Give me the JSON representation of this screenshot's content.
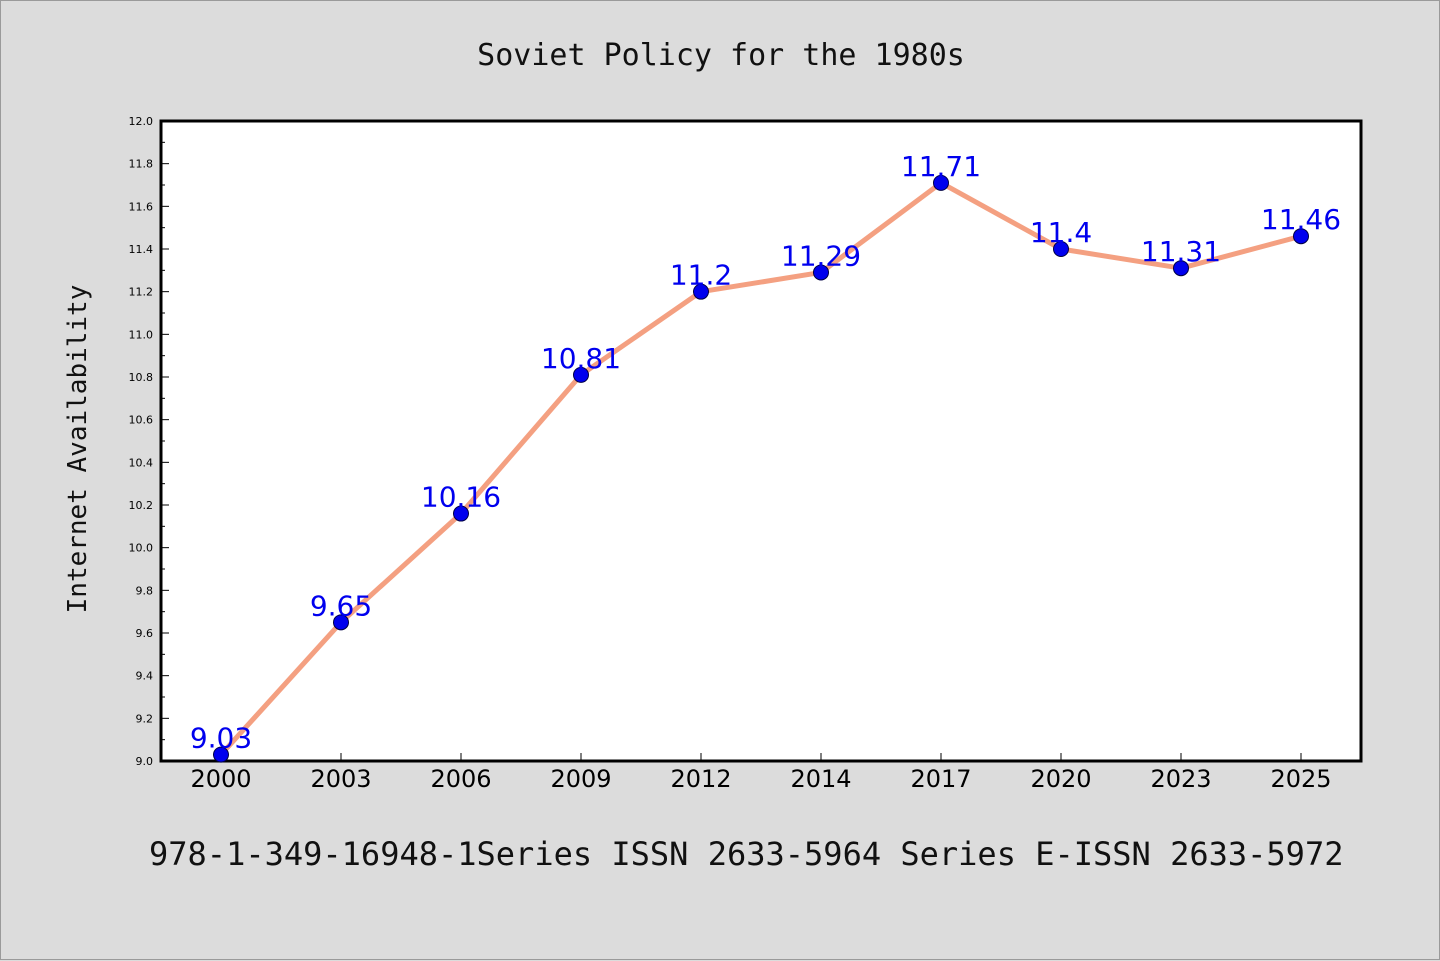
{
  "colors": {
    "background": "#dcdcdc",
    "plot_background": "#ffffff",
    "line": "#f4a081",
    "marker": "#0000ee",
    "data_label": "#0000ee"
  },
  "footer": {
    "text": "978-1-349-16948-1Series ISSN 2633-5964 Series E-ISSN 2633-5972"
  },
  "chart_data": {
    "type": "line",
    "title": "Soviet Policy for the 1980s",
    "xlabel": "",
    "ylabel": "Internet Availability",
    "categories": [
      "2000",
      "2003",
      "2006",
      "2009",
      "2012",
      "2014",
      "2017",
      "2020",
      "2023",
      "2025"
    ],
    "series": [
      {
        "values": [
          9.03,
          9.65,
          10.16,
          10.81,
          11.2,
          11.29,
          11.71,
          11.4,
          11.31,
          11.46
        ],
        "labels": [
          "9.03",
          "9.65",
          "10.16",
          "10.81",
          "11.2",
          "11.29",
          "11.71",
          "11.4",
          "11.31",
          "11.46"
        ]
      }
    ],
    "ylim": [
      9.0,
      12.0
    ],
    "yticks": [
      "9.0",
      "9.2",
      "9.4",
      "9.6",
      "9.8",
      "10.0",
      "10.2",
      "10.4",
      "10.6",
      "10.8",
      "11.0",
      "11.2",
      "11.4",
      "11.6",
      "11.8",
      "12.0"
    ],
    "grid": false,
    "legend": "none"
  }
}
